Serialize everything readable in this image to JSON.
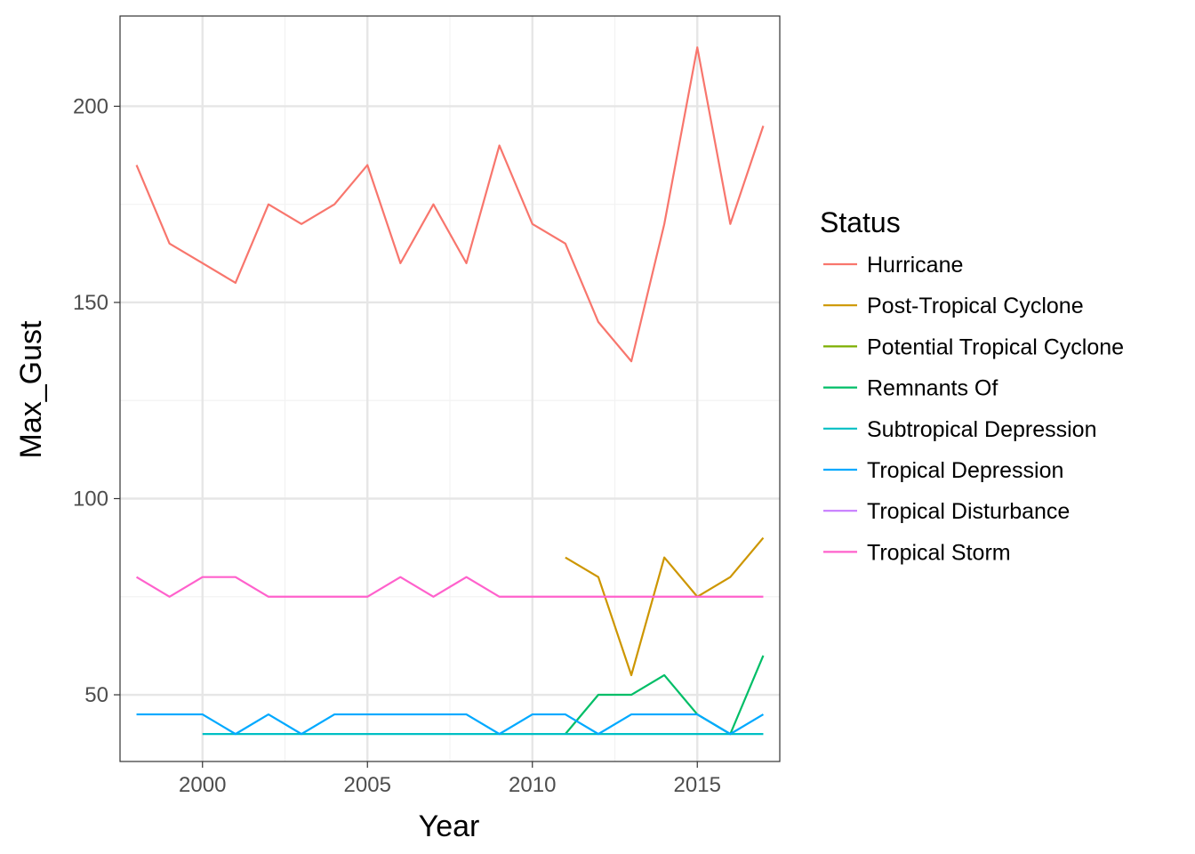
{
  "chart_data": {
    "type": "line",
    "xlabel": "Year",
    "ylabel": "Max_Gust",
    "xlim": [
      1997.5,
      2017.5
    ],
    "ylim": [
      33,
      223
    ],
    "x_ticks": [
      2000,
      2005,
      2010,
      2015
    ],
    "x_tick_labels": [
      "2000",
      "2005",
      "2010",
      "2015"
    ],
    "y_ticks": [
      50,
      100,
      150,
      200
    ],
    "y_tick_labels": [
      "50",
      "100",
      "150",
      "200"
    ],
    "grid": true,
    "legend": {
      "title": "Status",
      "placement": "right"
    },
    "series": [
      {
        "name": "Hurricane",
        "color": "#F8766D",
        "x": [
          1998,
          1999,
          2000,
          2001,
          2002,
          2003,
          2004,
          2005,
          2006,
          2007,
          2008,
          2009,
          2010,
          2011,
          2012,
          2013,
          2014,
          2015,
          2016,
          2017
        ],
        "y": [
          185,
          165,
          160,
          155,
          175,
          170,
          175,
          185,
          160,
          175,
          160,
          190,
          170,
          165,
          145,
          135,
          170,
          215,
          170,
          195
        ]
      },
      {
        "name": "Post-Tropical Cyclone",
        "color": "#CD9600",
        "x": [
          2011,
          2012,
          2013,
          2014,
          2015,
          2016,
          2017
        ],
        "y": [
          85,
          80,
          55,
          85,
          75,
          80,
          90
        ]
      },
      {
        "name": "Potential Tropical Cyclone",
        "color": "#7CAE00",
        "x": [],
        "y": []
      },
      {
        "name": "Remnants Of",
        "color": "#00BE67",
        "x": [
          2011,
          2012,
          2013,
          2014,
          2015,
          2016,
          2017
        ],
        "y": [
          40,
          50,
          50,
          55,
          45,
          40,
          60
        ]
      },
      {
        "name": "Subtropical Depression",
        "color": "#00BFC4",
        "x": [
          2000,
          2001,
          2002,
          2003,
          2004,
          2005,
          2006,
          2007,
          2008,
          2009,
          2010,
          2011,
          2012,
          2013,
          2014,
          2015,
          2016,
          2017
        ],
        "y": [
          40,
          40,
          40,
          40,
          40,
          40,
          40,
          40,
          40,
          40,
          40,
          40,
          40,
          40,
          40,
          40,
          40,
          40
        ]
      },
      {
        "name": "Tropical Depression",
        "color": "#00A9FF",
        "x": [
          1998,
          1999,
          2000,
          2001,
          2002,
          2003,
          2004,
          2005,
          2006,
          2007,
          2008,
          2009,
          2010,
          2011,
          2012,
          2013,
          2014,
          2015,
          2016,
          2017
        ],
        "y": [
          45,
          45,
          45,
          40,
          45,
          40,
          45,
          45,
          45,
          45,
          45,
          40,
          45,
          45,
          40,
          45,
          45,
          45,
          40,
          45
        ]
      },
      {
        "name": "Tropical Disturbance",
        "color": "#C77CFF",
        "x": [],
        "y": []
      },
      {
        "name": "Tropical Storm",
        "color": "#FF61CC",
        "x": [
          1998,
          1999,
          2000,
          2001,
          2002,
          2003,
          2004,
          2005,
          2006,
          2007,
          2008,
          2009,
          2010,
          2011,
          2012,
          2013,
          2014,
          2015,
          2016,
          2017
        ],
        "y": [
          80,
          75,
          80,
          80,
          75,
          75,
          75,
          75,
          80,
          75,
          80,
          75,
          75,
          75,
          75,
          75,
          75,
          75,
          75,
          75
        ]
      }
    ]
  }
}
